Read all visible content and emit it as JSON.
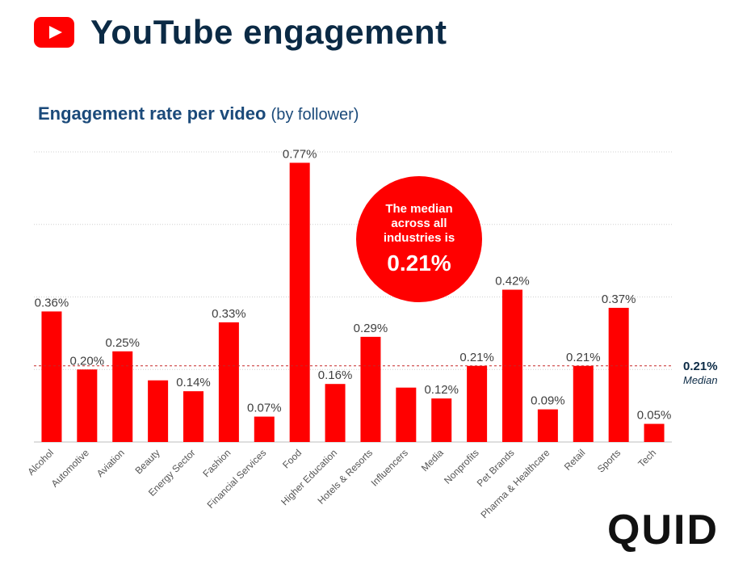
{
  "header": {
    "title": "YouTube engagement",
    "logo_icon": "youtube-play-icon"
  },
  "subtitle": {
    "main": "Engagement rate per video",
    "note": "(by follower)"
  },
  "callout": {
    "text": "The median across all industries is",
    "value": "0.21%"
  },
  "brand": "QUID",
  "colors": {
    "bar": "#ff0000",
    "title": "#0b2a45",
    "subtitle": "#1b4a7a",
    "median_line": "#c62828",
    "grid": "#d0d0d0"
  },
  "chart_data": {
    "type": "bar",
    "title": "Engagement rate per video (by follower)",
    "xlabel": "",
    "ylabel": "",
    "ylim": [
      0,
      0.8
    ],
    "grid": true,
    "categories": [
      "Alcohol",
      "Automotive",
      "Aviation",
      "Beauty",
      "Energy Sector",
      "Fashion",
      "Financial Services",
      "Food",
      "Higher Education",
      "Hotels & Resorts",
      "Influencers",
      "Media",
      "Nonprofits",
      "Pet Brands",
      "Pharma & Healthcare",
      "Retail",
      "Sports",
      "Tech"
    ],
    "values": [
      0.36,
      0.2,
      0.25,
      0.17,
      0.14,
      0.33,
      0.07,
      0.77,
      0.16,
      0.29,
      0.15,
      0.12,
      0.21,
      0.42,
      0.09,
      0.21,
      0.37,
      0.05
    ],
    "data_labels": [
      "0.36%",
      "0.20%",
      "0.25%",
      "",
      "0.14%",
      "0.33%",
      "0.07%",
      "0.77%",
      "0.16%",
      "0.29%",
      "",
      "0.12%",
      "0.21%",
      "0.42%",
      "0.09%",
      "0.21%",
      "0.37%",
      "0.05%"
    ],
    "median": {
      "value": 0.21,
      "value_label": "0.21%",
      "label": "Median"
    }
  }
}
